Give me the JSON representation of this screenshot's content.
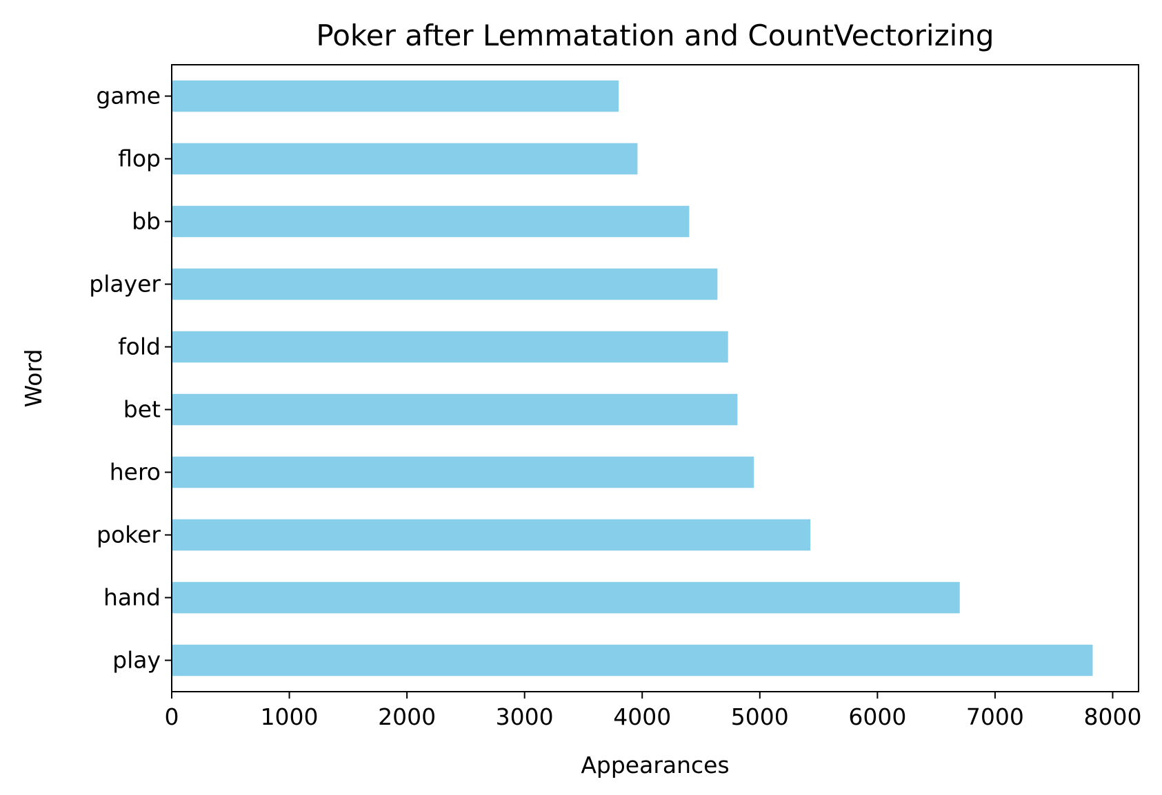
{
  "chart_data": {
    "type": "bar",
    "orientation": "horizontal",
    "title": "Poker after Lemmatation and CountVectorizing",
    "xlabel": "Appearances",
    "ylabel": "Word",
    "categories": [
      "play",
      "hand",
      "poker",
      "hero",
      "bet",
      "fold",
      "player",
      "bb",
      "flop",
      "game"
    ],
    "values": [
      7830,
      6700,
      5430,
      4950,
      4810,
      4730,
      4640,
      4400,
      3960,
      3800
    ],
    "xlim": [
      0,
      8220
    ],
    "xticks": [
      0,
      1000,
      2000,
      3000,
      4000,
      5000,
      6000,
      7000,
      8000
    ],
    "bar_color": "#87CEEB",
    "grid": false,
    "legend": "none"
  }
}
